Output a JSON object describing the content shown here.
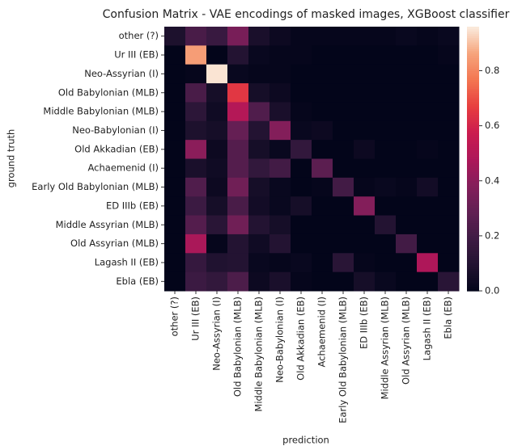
{
  "chart_data": {
    "type": "heatmap",
    "title": "Confusion Matrix - VAE encodings of masked images, XGBoost classifier",
    "xlabel": "prediction",
    "ylabel": "ground truth",
    "x": [
      "other (?)",
      "Ur III (EB)",
      "Neo-Assyrian (I)",
      "Old Babylonian (MLB)",
      "Middle Babylonian (MLB)",
      "Neo-Babylonian (I)",
      "Old Akkadian (EB)",
      "Achaemenid (I)",
      "Early Old Babylonian (MLB)",
      "ED IIIb (EB)",
      "Middle Assyrian (MLB)",
      "Old Assyrian (MLB)",
      "Lagash II (EB)",
      "Ebla (EB)"
    ],
    "y": [
      "other (?)",
      "Ur III (EB)",
      "Neo-Assyrian (I)",
      "Old Babylonian (MLB)",
      "Middle Babylonian (MLB)",
      "Neo-Babylonian (I)",
      "Old Akkadian (EB)",
      "Achaemenid (I)",
      "Early Old Babylonian (MLB)",
      "ED IIIb (EB)",
      "Middle Assyrian (MLB)",
      "Old Assyrian (MLB)",
      "Lagash II (EB)",
      "Ebla (EB)"
    ],
    "values": [
      [
        0.08,
        0.22,
        0.17,
        0.35,
        0.07,
        0.03,
        0.01,
        0.01,
        0.01,
        0.01,
        0.01,
        0.02,
        0.01,
        0.02
      ],
      [
        0,
        0.85,
        0,
        0.1,
        0.02,
        0.01,
        0.01,
        0,
        0,
        0,
        0,
        0,
        0,
        0.01
      ],
      [
        0,
        0.01,
        0.95,
        0.02,
        0.01,
        0.01,
        0,
        0,
        0,
        0,
        0,
        0,
        0,
        0
      ],
      [
        0,
        0.22,
        0.06,
        0.65,
        0.06,
        0.03,
        0,
        0,
        0,
        0,
        0,
        0,
        0,
        0
      ],
      [
        0,
        0.13,
        0.04,
        0.5,
        0.24,
        0.07,
        0.01,
        0,
        0,
        0,
        0,
        0,
        0,
        0
      ],
      [
        0,
        0.08,
        0.06,
        0.3,
        0.1,
        0.38,
        0.02,
        0.03,
        0,
        0,
        0,
        0,
        0,
        0
      ],
      [
        0,
        0.4,
        0.03,
        0.25,
        0.06,
        0.02,
        0.15,
        0,
        0,
        0.03,
        0,
        0,
        0.01,
        0
      ],
      [
        0,
        0.07,
        0.04,
        0.25,
        0.15,
        0.2,
        0,
        0.27,
        0,
        0,
        0,
        0,
        0,
        0
      ],
      [
        0,
        0.24,
        0.03,
        0.33,
        0.06,
        0.02,
        0,
        0.01,
        0.2,
        0.01,
        0.02,
        0.01,
        0.05,
        0
      ],
      [
        0,
        0.18,
        0.06,
        0.22,
        0.05,
        0.02,
        0.06,
        0,
        0,
        0.38,
        0,
        0,
        0,
        0
      ],
      [
        0,
        0.25,
        0.12,
        0.33,
        0.1,
        0.06,
        0,
        0,
        0,
        0,
        0.1,
        0,
        0,
        0
      ],
      [
        0,
        0.47,
        0.01,
        0.1,
        0.04,
        0.1,
        0,
        0,
        0,
        0,
        0,
        0.2,
        0,
        0
      ],
      [
        0,
        0.16,
        0.09,
        0.1,
        0.02,
        0.01,
        0.02,
        0,
        0.12,
        0.01,
        0,
        0,
        0.48,
        0
      ],
      [
        0,
        0.18,
        0.15,
        0.23,
        0.03,
        0.07,
        0.01,
        0,
        0,
        0.06,
        0.02,
        0,
        0,
        0.12
      ]
    ],
    "zlim": [
      0,
      0.96
    ],
    "zticks": [
      {
        "value": 0,
        "label": "0.0"
      },
      0.2,
      0.4,
      0.6,
      0.8
    ],
    "colorscale": [
      "#03051a",
      "#221331",
      "#3f1b44",
      "#611f53",
      "#841e5a",
      "#ae1759",
      "#cb1b4f",
      "#e83f3f",
      "#f37651",
      "#f6a47c",
      "#faebdd"
    ]
  }
}
